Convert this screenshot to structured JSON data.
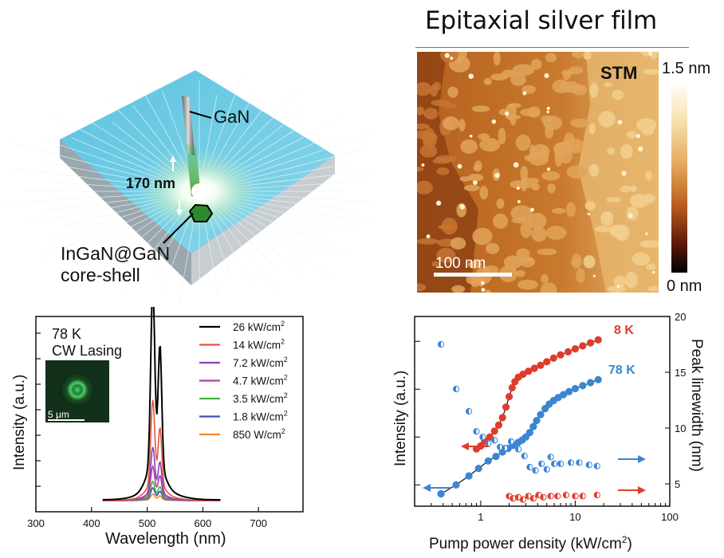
{
  "top_left": {
    "gan_label": "GaN",
    "distance_label": "170 nm",
    "core_label_line1": "InGaN@GaN",
    "core_label_line2": "core-shell"
  },
  "top_right": {
    "title": "Epitaxial silver film",
    "stm_label": "STM",
    "scale_bar_label": "100 nm",
    "colorbar_max": "1.5 nm",
    "colorbar_min": "0 nm",
    "colorbar_colors": [
      "#ffffff",
      "#f7e3b0",
      "#e3a458",
      "#b85d1e",
      "#5c1a0a",
      "#000000"
    ]
  },
  "bottom_left": {
    "temperature_label": "78 K",
    "mode_label": "CW Lasing",
    "inset_scale_label": "5 μm",
    "ylabel": "Intensity (a.u.)",
    "xlabel": "Wavelength (nm)",
    "x_ticks": [
      "300",
      "400",
      "500",
      "600",
      "700"
    ],
    "legend": [
      {
        "value": "26",
        "unit": "kW/cm",
        "color": "#000000"
      },
      {
        "value": "14",
        "unit": "kW/cm",
        "color": "#e8553c"
      },
      {
        "value": "7.2",
        "unit": "kW/cm",
        "color": "#8a3fb8"
      },
      {
        "value": "4.7",
        "unit": "kW/cm",
        "color": "#b03fa8"
      },
      {
        "value": "3.5",
        "unit": "kW/cm",
        "color": "#3fb83f"
      },
      {
        "value": "1.8",
        "unit": "kW/cm",
        "color": "#3f4fb8"
      },
      {
        "value": "850",
        "unit": "W/cm",
        "color": "#f08a2a"
      }
    ]
  },
  "bottom_right": {
    "label_8k": "8 K",
    "label_78k": "78 K",
    "xlabel": "Pump power density (kW/cm",
    "xlabel_sup": "2",
    "xlabel_end": ")",
    "ylabel_left": "Intensity (a.u.)",
    "ylabel_right": "Peak linewidth (nm)",
    "x_ticks": [
      "1",
      "10",
      "100"
    ],
    "y_right_ticks": [
      "5",
      "10",
      "15",
      "20"
    ],
    "color_8k": "#e03c2c",
    "color_78k": "#3a86d2"
  },
  "chart_data": [
    {
      "type": "line",
      "xlabel": "Wavelength (nm)",
      "ylabel": "Intensity (a.u.)",
      "xlim": [
        300,
        780
      ],
      "peaks_nm": [
        510,
        523
      ],
      "series": [
        {
          "name": "26 kW/cm2",
          "peak_relative": 1.0
        },
        {
          "name": "14 kW/cm2",
          "peak_relative": 0.47
        },
        {
          "name": "7.2 kW/cm2",
          "peak_relative": 0.25
        },
        {
          "name": "4.7 kW/cm2",
          "peak_relative": 0.16
        },
        {
          "name": "3.5 kW/cm2",
          "peak_relative": 0.09
        },
        {
          "name": "1.8 kW/cm2",
          "peak_relative": 0.06
        },
        {
          "name": "850 W/cm2",
          "peak_relative": 0.03
        }
      ]
    },
    {
      "type": "scatter",
      "xlabel": "Pump power density (kW/cm2)",
      "ylabel": "Intensity (a.u.)",
      "y2label": "Peak linewidth (nm)",
      "xscale": "log",
      "xlim": [
        0.2,
        100
      ],
      "y2lim": [
        3,
        20
      ],
      "series": [
        {
          "name": "8 K",
          "x": [
            0.9,
            1.0,
            1.1,
            1.25,
            1.4,
            1.55,
            1.7,
            1.85,
            2.0,
            2.15,
            2.3,
            2.5,
            2.8,
            3.2,
            3.7,
            4.3,
            5.0,
            5.9,
            7.0,
            8.4,
            10,
            12,
            14.5,
            17.5
          ],
          "y": [
            1.7,
            1.8,
            1.95,
            2.1,
            2.3,
            2.5,
            2.75,
            3.1,
            3.45,
            3.75,
            3.95,
            4.1,
            4.2,
            4.3,
            4.4,
            4.5,
            4.62,
            4.74,
            4.85,
            4.95,
            5.05,
            5.15,
            5.25,
            5.35
          ]
        },
        {
          "name": "78 K",
          "x": [
            0.38,
            0.55,
            0.75,
            0.95,
            1.2,
            1.45,
            1.7,
            1.95,
            2.2,
            2.5,
            2.75,
            3.0,
            3.3,
            3.6,
            3.9,
            4.3,
            4.8,
            5.3,
            5.9,
            6.6,
            7.5,
            8.6,
            10,
            12,
            14.5,
            17.5
          ],
          "y": [
            0.2,
            0.5,
            0.8,
            1.05,
            1.3,
            1.45,
            1.6,
            1.72,
            1.82,
            1.92,
            2.0,
            2.1,
            2.25,
            2.45,
            2.65,
            2.85,
            3.05,
            3.2,
            3.32,
            3.42,
            3.52,
            3.62,
            3.72,
            3.82,
            3.92,
            4.02
          ]
        },
        {
          "name": "8 K linewidth",
          "x": [
            2.0,
            2.2,
            2.5,
            2.8,
            3.2,
            3.6,
            4.1,
            4.6,
            5.5,
            6.5,
            8,
            10,
            12,
            17
          ],
          "y2": [
            3.9,
            3.7,
            3.8,
            3.6,
            3.9,
            3.7,
            4.0,
            3.8,
            3.9,
            3.9,
            4.0,
            3.9,
            3.9,
            4.0
          ]
        },
        {
          "name": "78 K linewidth",
          "x": [
            0.38,
            0.55,
            0.75,
            0.9,
            1.05,
            1.2,
            1.4,
            1.6,
            1.8,
            2.1,
            2.5,
            2.9,
            3.3,
            3.8,
            4.4,
            5.0,
            5.5,
            6.0,
            7.0,
            9.0,
            11,
            14,
            17
          ],
          "y2": [
            17.5,
            13.5,
            11.5,
            9.7,
            9.2,
            8.6,
            8.9,
            8.3,
            8.2,
            8.8,
            8.1,
            7.5,
            6.5,
            6.2,
            6.8,
            6.3,
            7.4,
            6.8,
            6.8,
            6.9,
            6.9,
            6.7,
            6.6
          ]
        }
      ]
    }
  ]
}
